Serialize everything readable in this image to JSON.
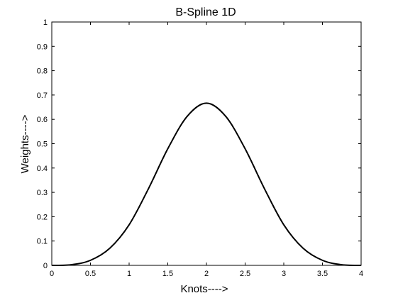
{
  "chart_data": {
    "type": "line",
    "title": "B-Spline 1D",
    "xlabel": "Knots---->",
    "ylabel": "Weights---->",
    "xlim": [
      0,
      4
    ],
    "ylim": [
      0,
      1
    ],
    "xticks": [
      "0",
      "0.5",
      "1",
      "1.5",
      "2",
      "2.5",
      "3",
      "3.5",
      "4"
    ],
    "yticks": [
      "0",
      "0.1",
      "0.2",
      "0.3",
      "0.4",
      "0.5",
      "0.6",
      "0.7",
      "0.8",
      "0.9",
      "1"
    ],
    "grid": false,
    "legend": "none",
    "line_color": "#000000",
    "series": [
      {
        "x": [
          0,
          0.25,
          0.5,
          0.75,
          1,
          1.25,
          1.5,
          1.75,
          2,
          2.25,
          2.5,
          2.75,
          3,
          3.25,
          3.5,
          3.75,
          4
        ],
        "values": [
          0,
          0.0026,
          0.0208,
          0.0703,
          0.1667,
          0.3151,
          0.4792,
          0.612,
          0.6667,
          0.612,
          0.4792,
          0.3151,
          0.1667,
          0.0703,
          0.0208,
          0.0026,
          0
        ]
      }
    ]
  }
}
